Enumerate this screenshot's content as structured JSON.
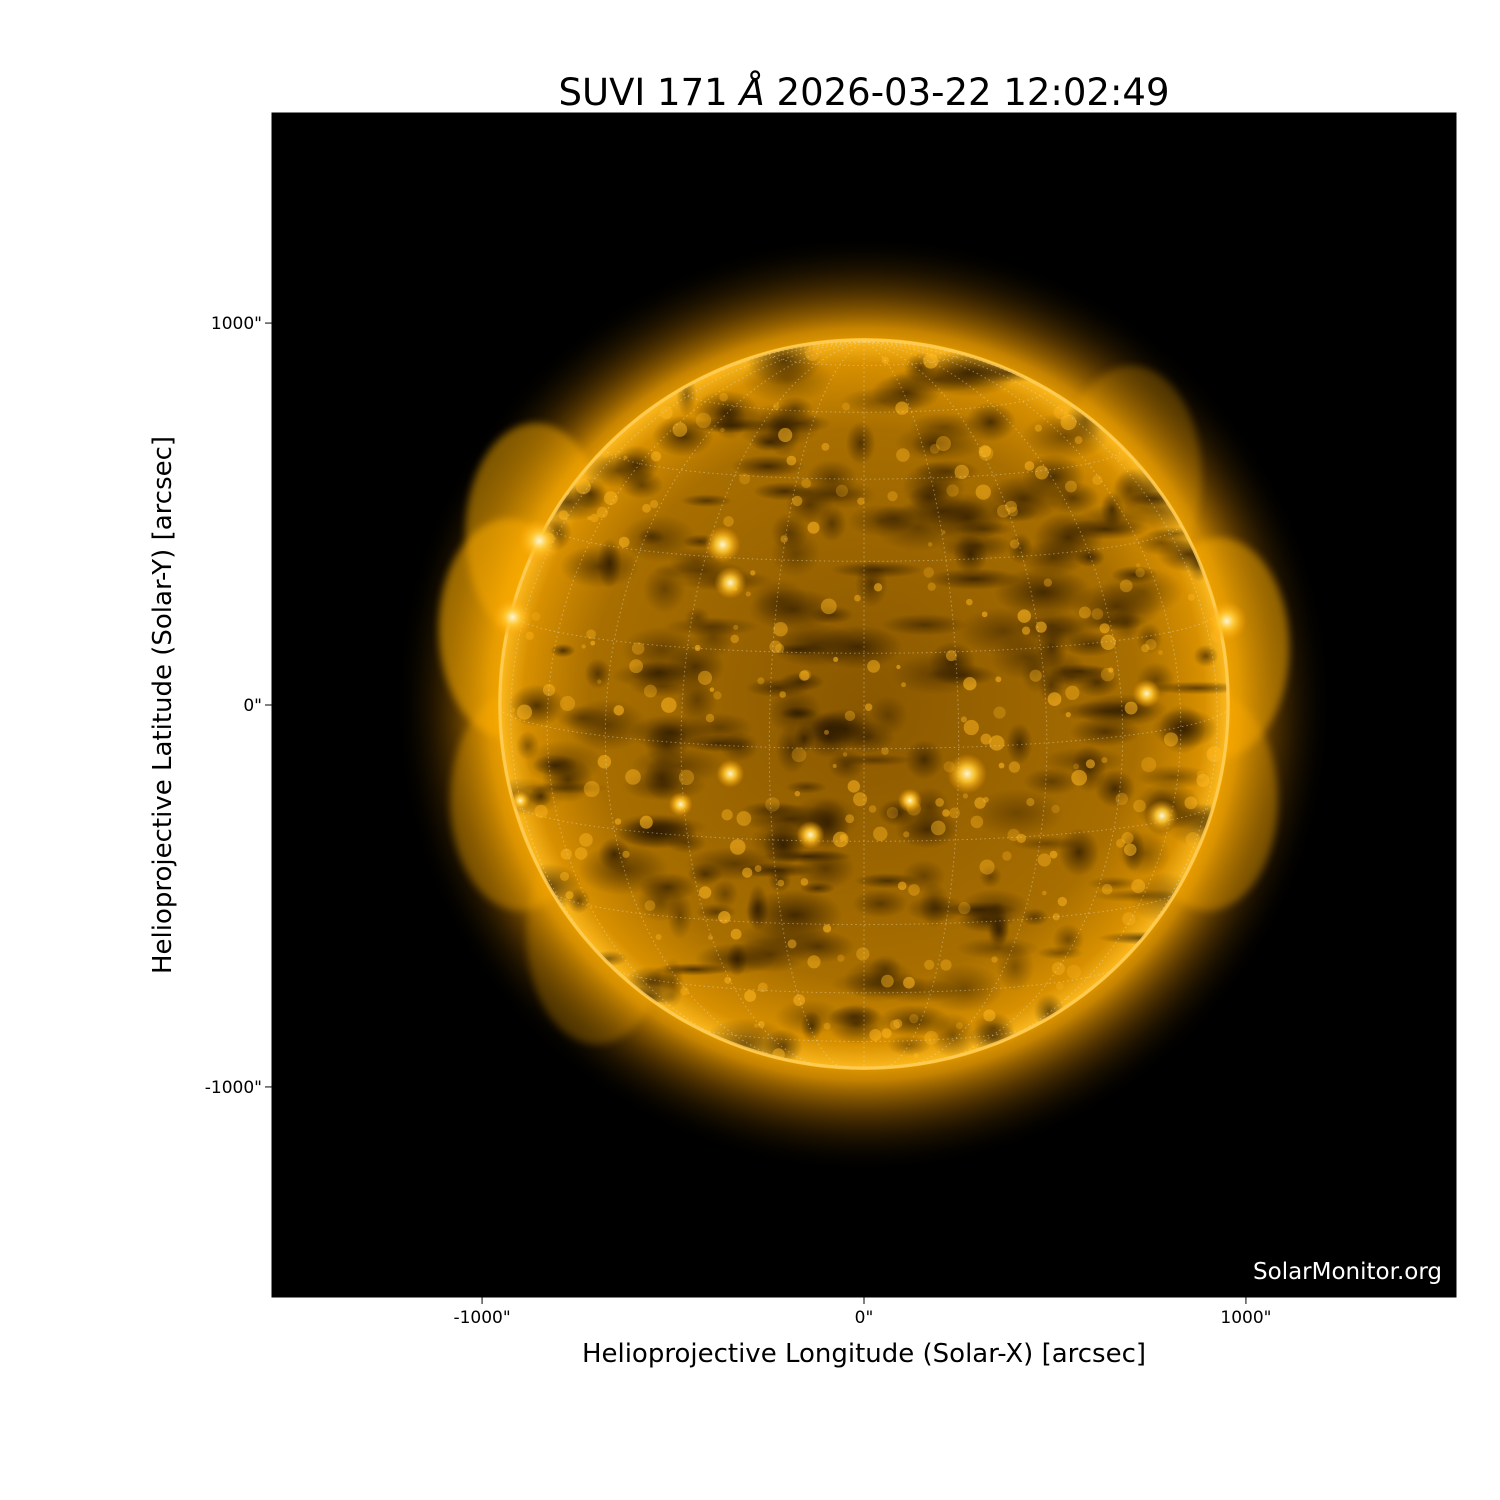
{
  "chart_data": {
    "type": "image",
    "title_prefix": "SUVI 171",
    "title_unit": "Å",
    "title_datetime": "2026-03-22 12:02:49",
    "xlabel": "Helioprojective Longitude (Solar-X) [arcsec]",
    "ylabel": "Helioprojective Latitude (Solar-Y) [arcsec]",
    "xlim": [
      -1550,
      1550
    ],
    "ylim": [
      -1550,
      1550
    ],
    "x_ticks": [
      {
        "value": -1000,
        "label": "-1000\""
      },
      {
        "value": 0,
        "label": "0\""
      },
      {
        "value": 1000,
        "label": "1000\""
      }
    ],
    "y_ticks": [
      {
        "value": 1000,
        "label": "1000\""
      },
      {
        "value": 0,
        "label": "0\""
      },
      {
        "value": -1000,
        "label": "-1000\""
      }
    ],
    "solar_radius_arcsec": 958,
    "colormap": "goes-rsuvi171",
    "colors": {
      "background": "#000000",
      "disk": "#b87800",
      "limb": "#ffb400",
      "bright": "#fff2c0"
    },
    "grid": "heliographic dotted",
    "watermark": "SolarMonitor.org"
  }
}
